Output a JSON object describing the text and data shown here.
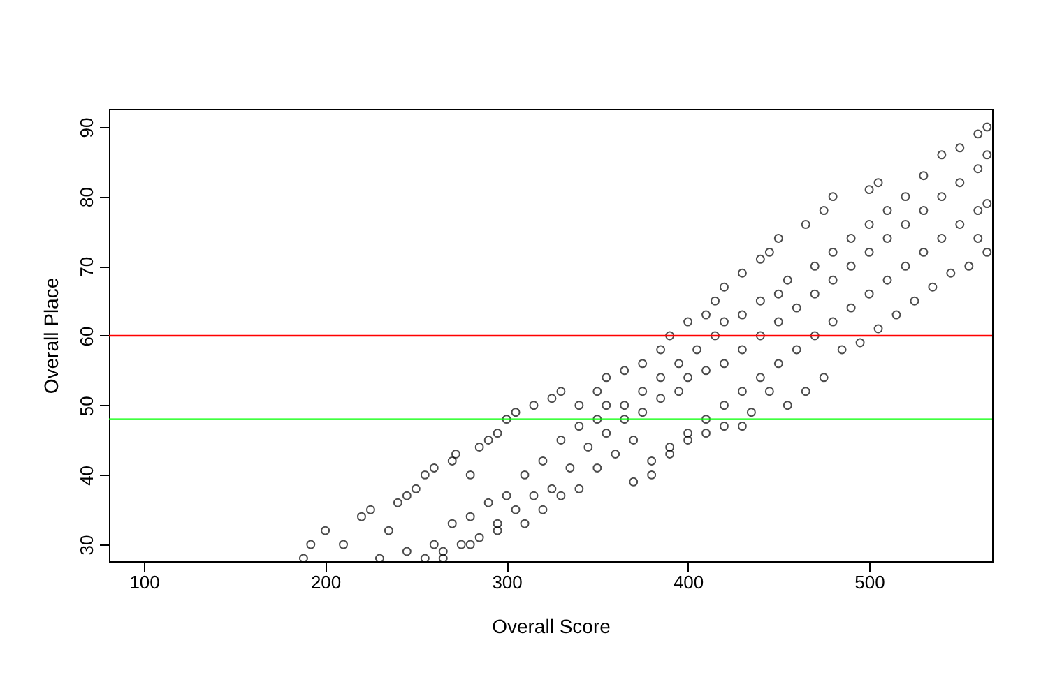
{
  "chart_data": {
    "type": "scatter",
    "xlabel": "Overall Score",
    "ylabel": "Overall Place",
    "xlim": [
      80.7,
      567.8
    ],
    "ylim": [
      27.6,
      92.6
    ],
    "xticks": [
      100,
      200,
      300,
      400,
      500
    ],
    "yticks": [
      30,
      40,
      50,
      60,
      70,
      80,
      90
    ],
    "grid": false,
    "marker": "circle",
    "ref_lines": [
      {
        "axis": "y",
        "value": 60,
        "color": "#ff0000"
      },
      {
        "axis": "y",
        "value": 48,
        "color": "#00ff00"
      }
    ],
    "series": [
      {
        "color": "#000000",
        "x": [
          188,
          192,
          200,
          210,
          220,
          225,
          235,
          240,
          245,
          250,
          255,
          260,
          270,
          272,
          280,
          285,
          290,
          295,
          300,
          305,
          315,
          325,
          330,
          340,
          350,
          355,
          365,
          375,
          385,
          390,
          400,
          410,
          415,
          420,
          430,
          440,
          445,
          450,
          465,
          475,
          480,
          500,
          505,
          230,
          245,
          260,
          270,
          280,
          290,
          300,
          310,
          320,
          330,
          340,
          350,
          355,
          365,
          375,
          385,
          395,
          405,
          415,
          420,
          430,
          440,
          450,
          455,
          470,
          480,
          490,
          500,
          510,
          520,
          530,
          540,
          550,
          560,
          565,
          255,
          265,
          275,
          285,
          295,
          305,
          315,
          325,
          335,
          345,
          355,
          365,
          375,
          385,
          395,
          400,
          410,
          420,
          430,
          440,
          450,
          460,
          470,
          480,
          490,
          500,
          510,
          520,
          530,
          540,
          550,
          560,
          565,
          265,
          280,
          295,
          310,
          320,
          330,
          340,
          350,
          360,
          370,
          380,
          390,
          400,
          410,
          420,
          430,
          440,
          450,
          460,
          470,
          480,
          490,
          500,
          510,
          520,
          530,
          540,
          550,
          560,
          565,
          370,
          380,
          390,
          400,
          410,
          420,
          430,
          435,
          445,
          455,
          465,
          475,
          485,
          495,
          505,
          515,
          525,
          535,
          545,
          555,
          565,
          560
        ],
        "values": [
          28,
          30,
          32,
          30,
          34,
          35,
          32,
          36,
          37,
          38,
          40,
          41,
          42,
          43,
          40,
          44,
          45,
          46,
          48,
          49,
          50,
          51,
          52,
          50,
          52,
          54,
          55,
          56,
          58,
          60,
          62,
          63,
          65,
          67,
          69,
          71,
          72,
          74,
          76,
          78,
          80,
          81,
          82,
          28,
          29,
          30,
          33,
          34,
          36,
          37,
          40,
          42,
          45,
          47,
          48,
          50,
          50,
          52,
          54,
          56,
          58,
          60,
          62,
          63,
          65,
          66,
          68,
          70,
          72,
          74,
          76,
          78,
          80,
          83,
          86,
          87,
          89,
          90,
          28,
          29,
          30,
          31,
          33,
          35,
          37,
          38,
          41,
          44,
          46,
          48,
          49,
          51,
          52,
          54,
          55,
          56,
          58,
          60,
          62,
          64,
          66,
          68,
          70,
          72,
          74,
          76,
          78,
          80,
          82,
          84,
          86,
          28,
          30,
          32,
          33,
          35,
          37,
          38,
          41,
          43,
          45,
          42,
          44,
          46,
          48,
          50,
          52,
          54,
          56,
          58,
          60,
          62,
          64,
          66,
          68,
          70,
          72,
          74,
          76,
          78,
          79,
          39,
          40,
          43,
          45,
          46,
          47,
          47,
          49,
          52,
          50,
          52,
          54,
          58,
          59,
          61,
          63,
          65,
          67,
          69,
          70,
          72,
          74
        ]
      }
    ]
  }
}
